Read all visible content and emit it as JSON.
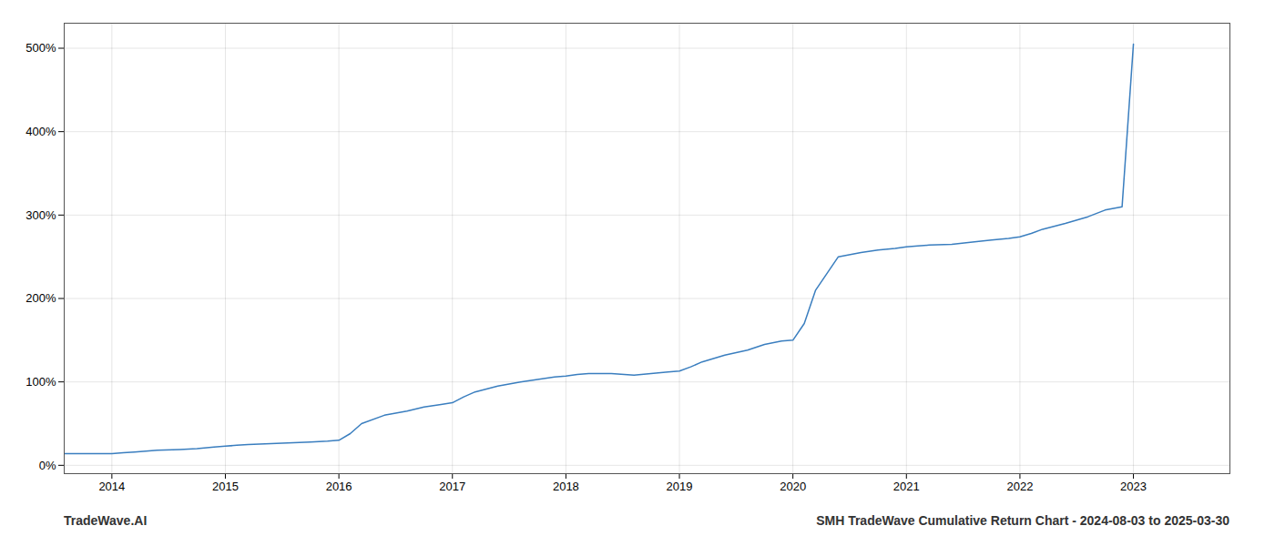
{
  "chart_data": {
    "type": "line",
    "title": "SMH TradeWave Cumulative Return Chart - 2024-08-03 to 2025-03-30",
    "annotations": [
      "TradeWave.AI"
    ],
    "x": [
      2013.58,
      2014.0,
      2014.1,
      2014.2,
      2014.4,
      2014.6,
      2014.75,
      2014.9,
      2015.0,
      2015.1,
      2015.2,
      2015.4,
      2015.6,
      2015.75,
      2015.9,
      2016.0,
      2016.1,
      2016.2,
      2016.4,
      2016.6,
      2016.75,
      2016.9,
      2017.0,
      2017.1,
      2017.2,
      2017.4,
      2017.6,
      2017.75,
      2017.9,
      2018.0,
      2018.1,
      2018.2,
      2018.4,
      2018.6,
      2018.75,
      2018.9,
      2019.0,
      2019.1,
      2019.2,
      2019.4,
      2019.6,
      2019.75,
      2019.9,
      2020.0,
      2020.1,
      2020.2,
      2020.4,
      2020.6,
      2020.75,
      2020.9,
      2021.0,
      2021.1,
      2021.2,
      2021.4,
      2021.6,
      2021.75,
      2021.9,
      2022.0,
      2022.1,
      2022.2,
      2022.4,
      2022.6,
      2022.75,
      2022.9,
      2023.0
    ],
    "values": [
      14,
      14,
      15,
      16,
      18,
      19,
      20,
      22,
      23,
      24,
      25,
      26,
      27,
      28,
      29,
      30,
      38,
      50,
      60,
      65,
      70,
      73,
      75,
      82,
      88,
      95,
      100,
      103,
      106,
      107,
      109,
      110,
      110,
      108,
      110,
      112,
      113,
      118,
      124,
      132,
      138,
      145,
      149,
      150,
      170,
      210,
      250,
      255,
      258,
      260,
      262,
      263,
      264,
      265,
      268,
      270,
      272,
      274,
      278,
      283,
      290,
      298,
      306,
      310,
      505
    ],
    "color": "#3a7ebf",
    "xlim": [
      2013.58,
      2023.85
    ],
    "xticks": [
      2014,
      2015,
      2016,
      2017,
      2018,
      2019,
      2020,
      2021,
      2022,
      2023
    ],
    "ylim": [
      -10,
      530
    ],
    "yticks": [
      {
        "value": 0,
        "label": "0%"
      },
      {
        "value": 100,
        "label": "100%"
      },
      {
        "value": 200,
        "label": "200%"
      },
      {
        "value": 300,
        "label": "300%"
      },
      {
        "value": 400,
        "label": "400%"
      },
      {
        "value": 500,
        "label": "500%"
      }
    ],
    "grid": true
  }
}
